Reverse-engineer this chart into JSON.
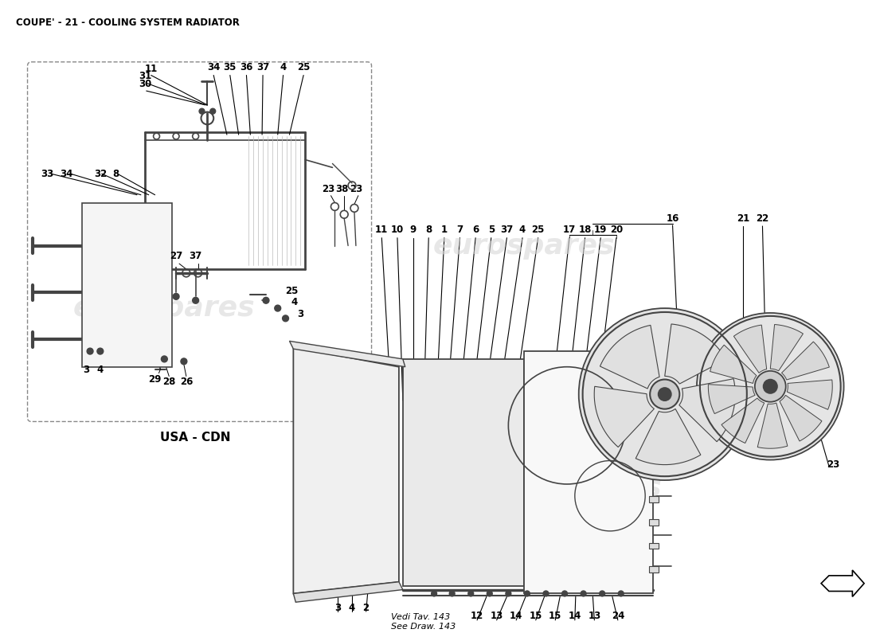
{
  "title": "COUPE' - 21 - COOLING SYSTEM RADIATOR",
  "background_color": "#ffffff",
  "title_fontsize": 8.5,
  "watermark": "eurospares",
  "usa_cdn_label": "USA - CDN",
  "vedi_tav_label": "Vedi Tav. 143\nSee Draw. 143",
  "part_number_color": "#000000",
  "line_color": "#000000",
  "diagram_color": "#444444",
  "light_gray": "#cccccc",
  "mid_gray": "#888888",
  "fan_gray": "#bbbbbb"
}
